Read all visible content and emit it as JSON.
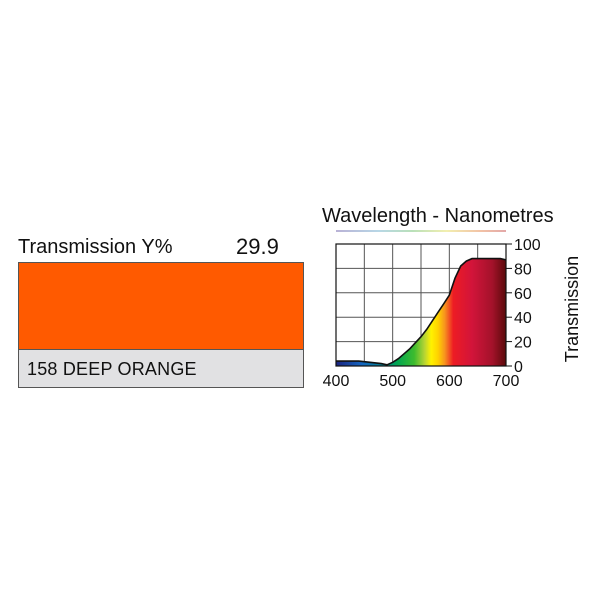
{
  "swatch": {
    "transmission_label": "Transmission Y%",
    "transmission_value": "29.9",
    "name": "158 DEEP ORANGE",
    "color": "#ff5a00"
  },
  "chart_data": {
    "type": "area",
    "title": "Wavelength - Nanometres",
    "xlabel": "",
    "ylabel": "Transmission",
    "xlim": [
      400,
      700
    ],
    "ylim": [
      0,
      100
    ],
    "xticks": [
      400,
      500,
      600,
      700
    ],
    "yticks": [
      0,
      20,
      40,
      60,
      80,
      100
    ],
    "grid": true,
    "series": [
      {
        "x": [
          400,
          420,
          440,
          460,
          480,
          490,
          500,
          510,
          520,
          530,
          540,
          550,
          560,
          570,
          580,
          590,
          600,
          610,
          620,
          630,
          640,
          650,
          660,
          670,
          680,
          690,
          700
        ],
        "y": [
          4,
          4,
          4,
          3,
          2,
          1,
          3,
          6,
          10,
          14,
          19,
          24,
          30,
          37,
          44,
          51,
          58,
          72,
          82,
          86,
          88,
          88,
          88,
          88,
          88,
          88,
          87
        ]
      }
    ]
  }
}
